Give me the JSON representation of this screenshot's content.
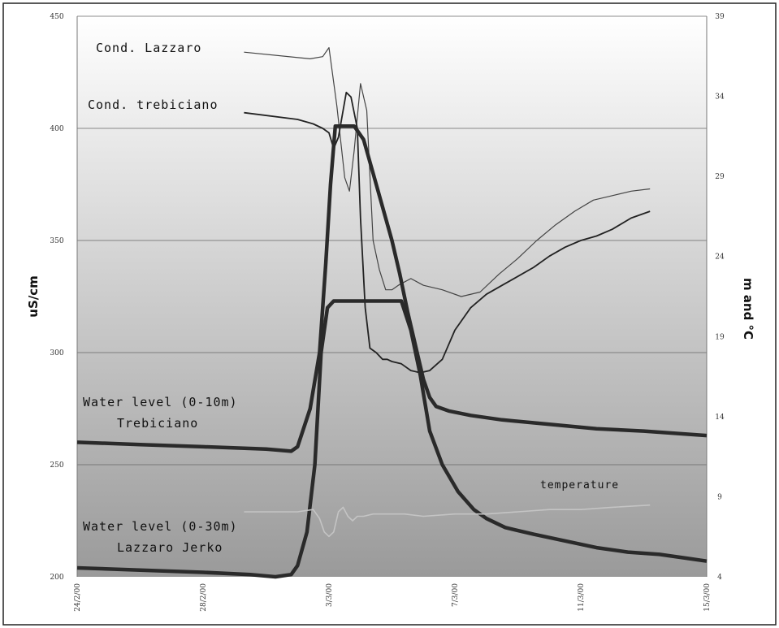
{
  "chart_data": {
    "type": "line",
    "xlabel": "",
    "x_ticks": [
      "24/2/00",
      "28/2/00",
      "3/3/00",
      "7/3/00",
      "11/3/00",
      "15/3/00"
    ],
    "x_range": [
      0,
      20
    ],
    "ylabel_left": "uS/cm",
    "ylim_left": [
      200,
      450
    ],
    "yticks_left": [
      "200",
      "250",
      "300",
      "350",
      "400",
      "450"
    ],
    "ylabel_right": "m and °C",
    "ylim_right": [
      4,
      39
    ],
    "yticks_right": [
      "4",
      "9",
      "14",
      "19",
      "24",
      "29",
      "34",
      "39"
    ],
    "grid": "horizontal",
    "background": "vertical gradient, white at top to grey at bottom",
    "series": [
      {
        "name": "Cond. Lazzaro",
        "axis": "left",
        "line": "thin",
        "label_lines": [
          "Cond. Lazzaro"
        ],
        "x": [
          5.3,
          7.4,
          7.8,
          8.0,
          8.25,
          8.5,
          8.65,
          8.8,
          9.0,
          9.2,
          9.4,
          9.6,
          9.8,
          10.0,
          10.2,
          10.6,
          11.0,
          11.6,
          12.2,
          12.8,
          13.4,
          14.0,
          14.6,
          15.2,
          15.8,
          16.4,
          17.0,
          17.6,
          18.2
        ],
        "y": [
          434,
          431,
          432,
          436,
          410,
          378,
          372,
          390,
          420,
          408,
          350,
          337,
          328,
          328,
          330,
          333,
          330,
          328,
          325,
          327,
          335,
          342,
          350,
          357,
          363,
          368,
          370,
          372,
          373
        ]
      },
      {
        "name": "Cond. trebiciano",
        "axis": "left",
        "line": "medium",
        "label_lines": [
          "Cond. trebiciano"
        ],
        "x": [
          5.3,
          7.0,
          7.5,
          7.8,
          8.0,
          8.15,
          8.3,
          8.45,
          8.55,
          8.7,
          8.9,
          9.0,
          9.15,
          9.3,
          9.5,
          9.7,
          9.85,
          10.0,
          10.3,
          10.6,
          10.9,
          11.2,
          11.6,
          12.0,
          12.5,
          13.0,
          13.5,
          14.0,
          14.5,
          15.0,
          15.5,
          16.0,
          16.5,
          17.0,
          17.6,
          18.2
        ],
        "y": [
          407,
          404,
          402,
          400,
          398,
          391,
          396,
          408,
          416,
          414,
          400,
          360,
          320,
          302,
          300,
          297,
          297,
          296,
          295,
          292,
          291,
          292,
          297,
          310,
          320,
          326,
          330,
          334,
          338,
          343,
          347,
          350,
          352,
          355,
          360,
          363
        ]
      },
      {
        "name": "Water level (0-10m) Trebiciano",
        "axis": "left",
        "line": "thick",
        "label_lines": [
          "Water level (0-10m)",
          "Trebiciano"
        ],
        "x": [
          0,
          2.0,
          4.0,
          6.0,
          6.8,
          7.0,
          7.4,
          7.7,
          7.9,
          8.05,
          8.2,
          8.5,
          8.8,
          9.1,
          9.4,
          9.7,
          10.0,
          10.25,
          10.5,
          10.8,
          11.0,
          11.2,
          11.4,
          11.8,
          12.5,
          13.5,
          15.0,
          16.5,
          18.0,
          19.0,
          20.0
        ],
        "y": [
          260,
          259,
          258,
          257,
          256,
          258,
          275,
          300,
          340,
          375,
          401,
          401,
          401,
          395,
          380,
          365,
          350,
          335,
          318,
          300,
          288,
          280,
          276,
          274,
          272,
          270,
          268,
          266,
          265,
          264,
          263
        ]
      },
      {
        "name": "Water level (0-30m) Lazzaro Jerko",
        "axis": "left",
        "line": "thick",
        "label_lines": [
          "Water level (0-30m)",
          "Lazzaro Jerko"
        ],
        "x": [
          0,
          2.0,
          4.0,
          5.5,
          6.3,
          6.8,
          7.0,
          7.3,
          7.55,
          7.75,
          7.95,
          8.15,
          8.5,
          9.0,
          9.5,
          10.0,
          10.3,
          10.6,
          10.9,
          11.2,
          11.6,
          12.1,
          12.6,
          13.0,
          13.6,
          14.5,
          15.5,
          16.5,
          17.5,
          18.5,
          19.5,
          20.0
        ],
        "y": [
          204,
          203,
          202,
          201,
          200,
          201,
          205,
          220,
          250,
          300,
          320,
          323,
          323,
          323,
          323,
          323,
          323,
          310,
          290,
          265,
          250,
          238,
          230,
          226,
          222,
          219,
          216,
          213,
          211,
          210,
          208,
          207
        ]
      },
      {
        "name": "temperature",
        "axis": "left",
        "line": "thin-light",
        "label_lines": [
          "temperature"
        ],
        "x": [
          5.3,
          7.0,
          7.5,
          7.7,
          7.85,
          8.0,
          8.15,
          8.3,
          8.45,
          8.6,
          8.75,
          8.9,
          9.1,
          9.4,
          9.8,
          10.4,
          11.0,
          12.0,
          13.0,
          14.0,
          15.0,
          16.0,
          17.0,
          18.2
        ],
        "y": [
          229,
          229,
          230,
          226,
          220,
          218,
          220,
          229,
          231,
          227,
          225,
          227,
          227,
          228,
          228,
          228,
          227,
          228,
          228,
          229,
          230,
          230,
          231,
          232
        ]
      }
    ]
  }
}
